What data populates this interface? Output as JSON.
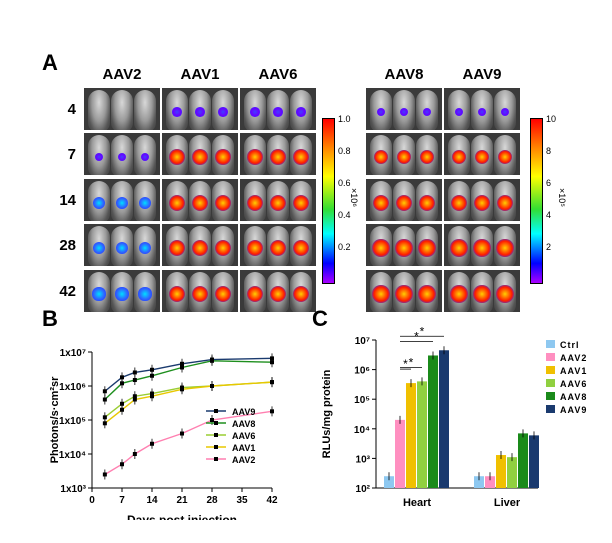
{
  "panel_a": {
    "letter": "A",
    "groups_left": [
      "AAV2",
      "AAV1",
      "AAV6"
    ],
    "groups_right": [
      "AAV8",
      "AAV9"
    ],
    "days": [
      "4",
      "7",
      "14",
      "28",
      "42"
    ],
    "signal_level": [
      [
        0.0,
        0.3,
        0.3,
        0.2,
        0.2
      ],
      [
        0.2,
        0.8,
        0.8,
        0.7,
        0.7
      ],
      [
        0.5,
        0.9,
        0.9,
        0.9,
        0.9
      ],
      [
        0.5,
        0.9,
        0.9,
        0.95,
        0.95
      ],
      [
        0.6,
        0.9,
        0.9,
        0.95,
        0.95
      ]
    ],
    "colorbar_left": {
      "ticks": [
        "1.0",
        "0.8",
        "0.6",
        "0.4",
        "0.2"
      ],
      "unit": "×10⁶"
    },
    "colorbar_right": {
      "ticks": [
        "10",
        "8",
        "6",
        "4",
        "2"
      ],
      "unit": "×10⁵"
    },
    "colors": {
      "tile_bg": "#3a3a3a"
    }
  },
  "panel_b": {
    "letter": "B",
    "chart_data": {
      "type": "line",
      "xlabel": "Days post injection",
      "ylabel": "Photons/s·cm²sr",
      "y_log": true,
      "ylim": [
        1000,
        10000000
      ],
      "xlim": [
        0,
        42
      ],
      "x_ticks": [
        "0",
        "7",
        "14",
        "21",
        "28",
        "35",
        "42"
      ],
      "y_ticks": [
        "1x10³",
        "1x10⁴",
        "1x10⁵",
        "1x10⁶",
        "1x10⁷"
      ],
      "x": [
        3,
        7,
        10,
        14,
        21,
        28,
        42
      ],
      "series": [
        {
          "name": "AAV9",
          "color": "#1a3a6e",
          "values": [
            700000,
            1800000,
            2500000,
            3000000,
            4500000,
            6000000,
            6500000
          ]
        },
        {
          "name": "AAV8",
          "color": "#1e8f1e",
          "values": [
            400000,
            1200000,
            1500000,
            2000000,
            3500000,
            5500000,
            5000000
          ]
        },
        {
          "name": "AAV6",
          "color": "#9acd32",
          "values": [
            120000,
            300000,
            500000,
            600000,
            900000,
            1000000,
            1300000
          ]
        },
        {
          "name": "AAV1",
          "color": "#e8c800",
          "values": [
            80000,
            200000,
            400000,
            500000,
            800000,
            1000000,
            1300000
          ]
        },
        {
          "name": "AAV2",
          "color": "#ff7fb0",
          "values": [
            2500,
            5000,
            10000,
            20000,
            40000,
            100000,
            180000
          ]
        }
      ]
    }
  },
  "panel_c": {
    "letter": "C",
    "chart_data": {
      "type": "bar",
      "ylabel": "RLUs/mg protein",
      "y_log": true,
      "ylim": [
        100,
        10000000
      ],
      "y_ticks": [
        "10²",
        "10³",
        "10⁴",
        "10⁵",
        "10⁶",
        "10⁷"
      ],
      "categories": [
        "Heart",
        "Liver"
      ],
      "series": [
        {
          "name": "Ctrl",
          "color": "#8ec8f0",
          "values": [
            250,
            250
          ]
        },
        {
          "name": "AAV2",
          "color": "#ff8fc0",
          "values": [
            20000,
            250
          ]
        },
        {
          "name": "AAV1",
          "color": "#f0c000",
          "values": [
            350000,
            1300
          ]
        },
        {
          "name": "AAV6",
          "color": "#90d040",
          "values": [
            400000,
            1100
          ]
        },
        {
          "name": "AAV8",
          "color": "#1a8a1a",
          "values": [
            3000000,
            7000
          ]
        },
        {
          "name": "AAV9",
          "color": "#1a3a6e",
          "values": [
            4500000,
            6000
          ]
        }
      ],
      "significance": [
        "*",
        "*",
        "*",
        "*"
      ]
    }
  }
}
